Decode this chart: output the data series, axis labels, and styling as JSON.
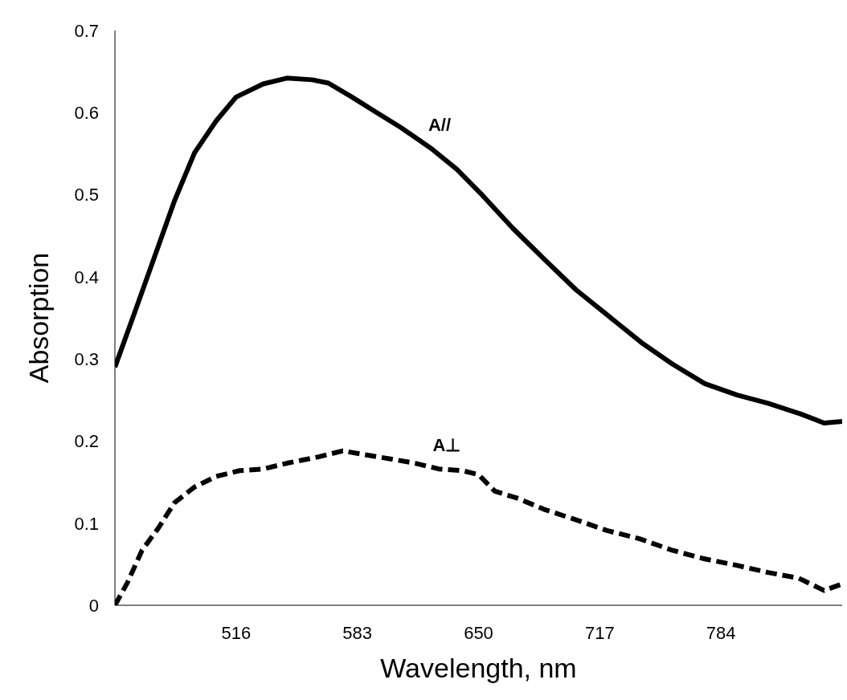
{
  "chart_data": {
    "type": "line",
    "xlabel": "Wavelength, nm",
    "ylabel": "Absorption",
    "xlim": [
      449,
      851
    ],
    "xticks": [
      516,
      583,
      650,
      717,
      784
    ],
    "ylim": [
      0,
      0.7
    ],
    "yticks": [
      0,
      0.1,
      0.2,
      0.3,
      0.4,
      0.5,
      0.6,
      0.7
    ],
    "grid": false,
    "legend": false,
    "marker": "none",
    "series": [
      {
        "name": "A//",
        "color": "#000000",
        "line_style": "solid",
        "x": [
          449,
          460,
          471,
          482,
          493,
          505,
          516,
          531,
          544,
          558,
          567,
          580,
          593,
          607,
          624,
          638,
          651,
          669,
          687,
          704,
          722,
          740,
          757,
          775,
          793,
          810,
          828,
          841,
          851
        ],
        "values": [
          0.29,
          0.357,
          0.425,
          0.493,
          0.551,
          0.59,
          0.619,
          0.635,
          0.642,
          0.64,
          0.636,
          0.619,
          0.601,
          0.582,
          0.556,
          0.531,
          0.502,
          0.459,
          0.42,
          0.384,
          0.352,
          0.32,
          0.294,
          0.27,
          0.256,
          0.246,
          0.233,
          0.222,
          0.224
        ]
      },
      {
        "name": "A⊥",
        "color": "#000000",
        "line_style": "dashed",
        "x": [
          449,
          456,
          464,
          473,
          482,
          493,
          505,
          518,
          531,
          544,
          562,
          575,
          588,
          602,
          615,
          628,
          641,
          650,
          659,
          672,
          686,
          704,
          721,
          739,
          757,
          774,
          792,
          810,
          827,
          841,
          851
        ],
        "values": [
          0,
          0.028,
          0.067,
          0.094,
          0.125,
          0.144,
          0.157,
          0.164,
          0.166,
          0.173,
          0.181,
          0.188,
          0.183,
          0.178,
          0.173,
          0.166,
          0.164,
          0.159,
          0.139,
          0.13,
          0.117,
          0.104,
          0.091,
          0.081,
          0.067,
          0.057,
          0.049,
          0.04,
          0.033,
          0.018,
          0.026
        ]
      }
    ]
  }
}
